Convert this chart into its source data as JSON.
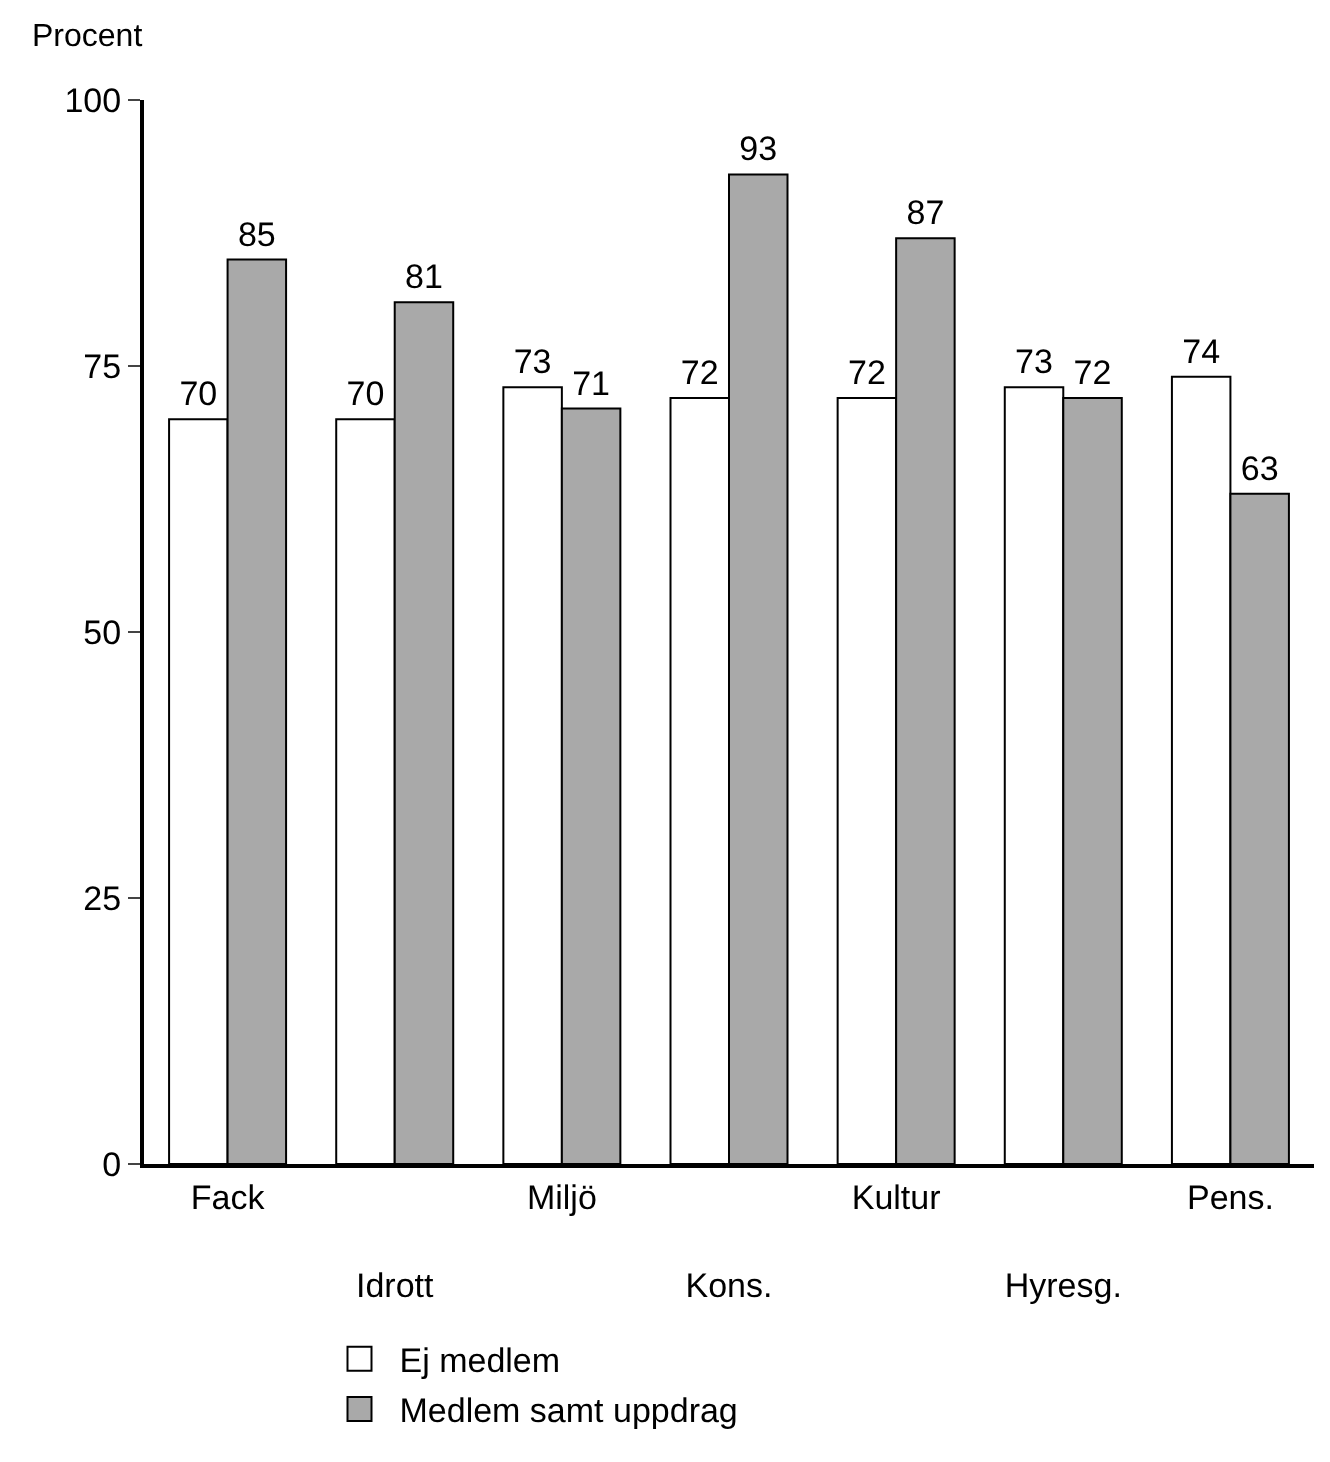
{
  "chart_data": {
    "type": "bar",
    "ylabel": "Procent",
    "categories": [
      "Fack",
      "Idrott",
      "Miljö",
      "Kons.",
      "Kultur",
      "Hyresg.",
      "Pens."
    ],
    "series": [
      {
        "name": "Ej medlem",
        "color": "#ffffff",
        "values": [
          70,
          70,
          73,
          72,
          72,
          73,
          74
        ]
      },
      {
        "name": "Medlem samt uppdrag",
        "color": "#a9a9a9",
        "values": [
          85,
          81,
          71,
          93,
          87,
          72,
          63
        ]
      }
    ],
    "ylim": [
      0,
      100
    ],
    "yticks": [
      0,
      25,
      50,
      75,
      100
    ],
    "legend": "bottom",
    "data_labels": true
  }
}
